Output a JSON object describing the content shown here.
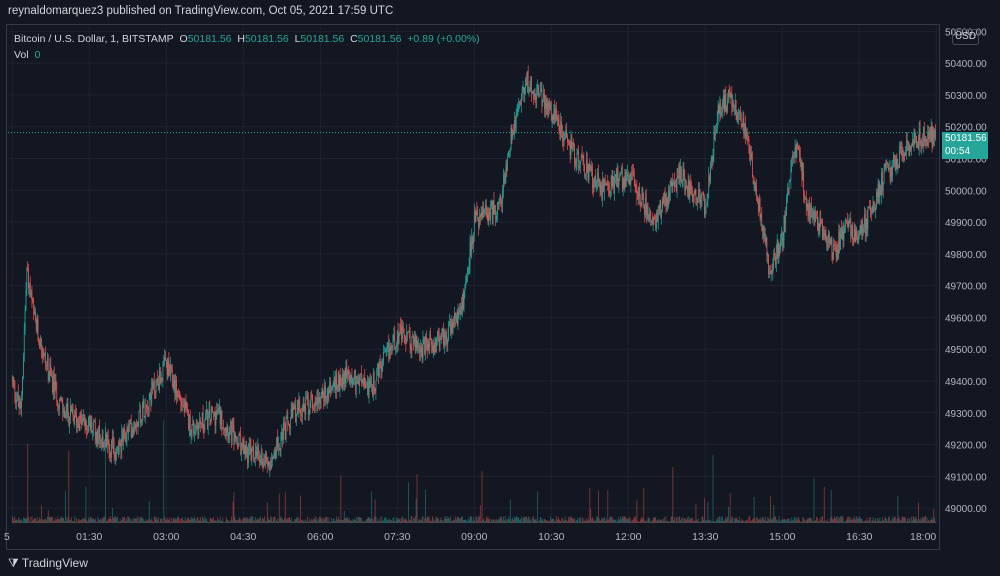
{
  "header": {
    "publisher": "reynaldomarquez3 published on TradingView.com, Oct 05, 2021 17:59 UTC"
  },
  "legend": {
    "symbol": "Bitcoin / U.S. Dollar, 1, BITSTAMP",
    "o_label": "O",
    "o_value": "50181.56",
    "h_label": "H",
    "h_value": "50181.56",
    "l_label": "L",
    "l_value": "50181.56",
    "c_label": "C",
    "c_value": "50181.56",
    "change": "+0.89 (+0.00%)",
    "vol_label": "Vol",
    "vol_value": "0"
  },
  "currency": "USD",
  "price_tag": {
    "price": "50181.56",
    "countdown": "00:54"
  },
  "footer": {
    "brand": "TradingView"
  },
  "colors": {
    "up": "#26a69a",
    "down": "#ef5350",
    "background": "#131722",
    "grid": "#1f2331",
    "text": "#d1d4dc"
  },
  "chart_data": {
    "type": "candlestick",
    "x_axis_ticks": [
      "5",
      "01:30",
      "03:00",
      "04:30",
      "06:00",
      "07:30",
      "09:00",
      "10:30",
      "12:00",
      "13:30",
      "15:00",
      "16:30",
      "18:00"
    ],
    "y_axis_ticks": [
      "49000.00",
      "49100.00",
      "49200.00",
      "49300.00",
      "49400.00",
      "49500.00",
      "49600.00",
      "49700.00",
      "49800.00",
      "49900.00",
      "50000.00",
      "50100.00",
      "50200.00",
      "50300.00",
      "50400.00",
      "50500.00"
    ],
    "ylim": [
      48950,
      50520
    ],
    "current_price": 50181.56,
    "close_path": [
      [
        "00:00",
        49400
      ],
      [
        "00:10",
        49300
      ],
      [
        "00:17",
        49750
      ],
      [
        "00:25",
        49600
      ],
      [
        "00:40",
        49450
      ],
      [
        "01:00",
        49300
      ],
      [
        "01:30",
        49260
      ],
      [
        "02:00",
        49180
      ],
      [
        "02:30",
        49300
      ],
      [
        "03:00",
        49450
      ],
      [
        "03:30",
        49250
      ],
      [
        "04:00",
        49300
      ],
      [
        "04:30",
        49180
      ],
      [
        "05:00",
        49150
      ],
      [
        "05:30",
        49300
      ],
      [
        "06:00",
        49350
      ],
      [
        "06:30",
        49420
      ],
      [
        "07:00",
        49380
      ],
      [
        "07:30",
        49550
      ],
      [
        "08:00",
        49500
      ],
      [
        "08:30",
        49550
      ],
      [
        "08:45",
        49620
      ],
      [
        "09:00",
        49900
      ],
      [
        "09:30",
        49950
      ],
      [
        "09:45",
        50200
      ],
      [
        "10:00",
        50350
      ],
      [
        "10:30",
        50250
      ],
      [
        "11:00",
        50100
      ],
      [
        "11:30",
        50000
      ],
      [
        "12:00",
        50050
      ],
      [
        "12:30",
        49900
      ],
      [
        "13:00",
        50050
      ],
      [
        "13:30",
        49950
      ],
      [
        "13:45",
        50250
      ],
      [
        "14:00",
        50300
      ],
      [
        "14:15",
        50200
      ],
      [
        "14:30",
        50000
      ],
      [
        "14:45",
        49750
      ],
      [
        "15:00",
        49850
      ],
      [
        "15:15",
        50150
      ],
      [
        "15:30",
        49950
      ],
      [
        "16:00",
        49800
      ],
      [
        "16:15",
        49900
      ],
      [
        "16:30",
        49850
      ],
      [
        "17:00",
        50050
      ],
      [
        "17:30",
        50150
      ],
      [
        "18:00",
        50180
      ]
    ]
  }
}
